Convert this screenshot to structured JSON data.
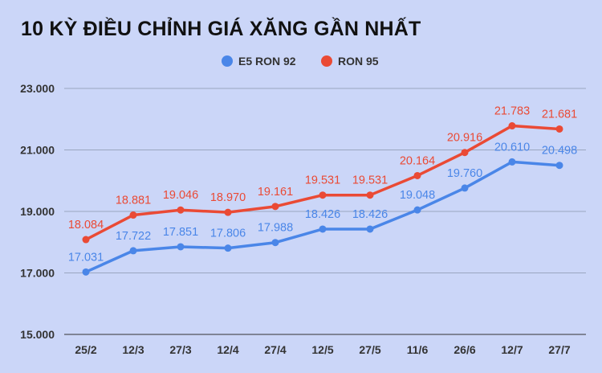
{
  "chart_data": {
    "type": "line",
    "title": "10 KỲ ĐIỀU CHỈNH GIÁ XĂNG GẦN NHẤT",
    "categories": [
      "25/2",
      "12/3",
      "27/3",
      "12/4",
      "27/4",
      "12/5",
      "27/5",
      "11/6",
      "26/6",
      "12/7",
      "27/7"
    ],
    "series": [
      {
        "name": "E5 RON 92",
        "color": "#4a86e8",
        "values": [
          17031,
          17722,
          17851,
          17806,
          17988,
          18426,
          18426,
          19048,
          19760,
          20610,
          20498
        ],
        "labels": [
          "17.031",
          "17.722",
          "17.851",
          "17.806",
          "17.988",
          "18.426",
          "18.426",
          "19.048",
          "19.760",
          "20.610",
          "20.498"
        ]
      },
      {
        "name": "RON 95",
        "color": "#ea4a35",
        "values": [
          18084,
          18881,
          19046,
          18970,
          19161,
          19531,
          19531,
          20164,
          20916,
          21783,
          21681
        ],
        "labels": [
          "18.084",
          "18.881",
          "19.046",
          "18.970",
          "19.161",
          "19.531",
          "19.531",
          "20.164",
          "20.916",
          "21.783",
          "21.681"
        ]
      }
    ],
    "ylim": [
      15000,
      23000
    ],
    "yticks": [
      15000,
      17000,
      19000,
      21000,
      23000
    ],
    "ytick_labels": [
      "15.000",
      "17.000",
      "19.000",
      "21.000",
      "23.000"
    ],
    "grid": true,
    "legend": "top-center"
  }
}
